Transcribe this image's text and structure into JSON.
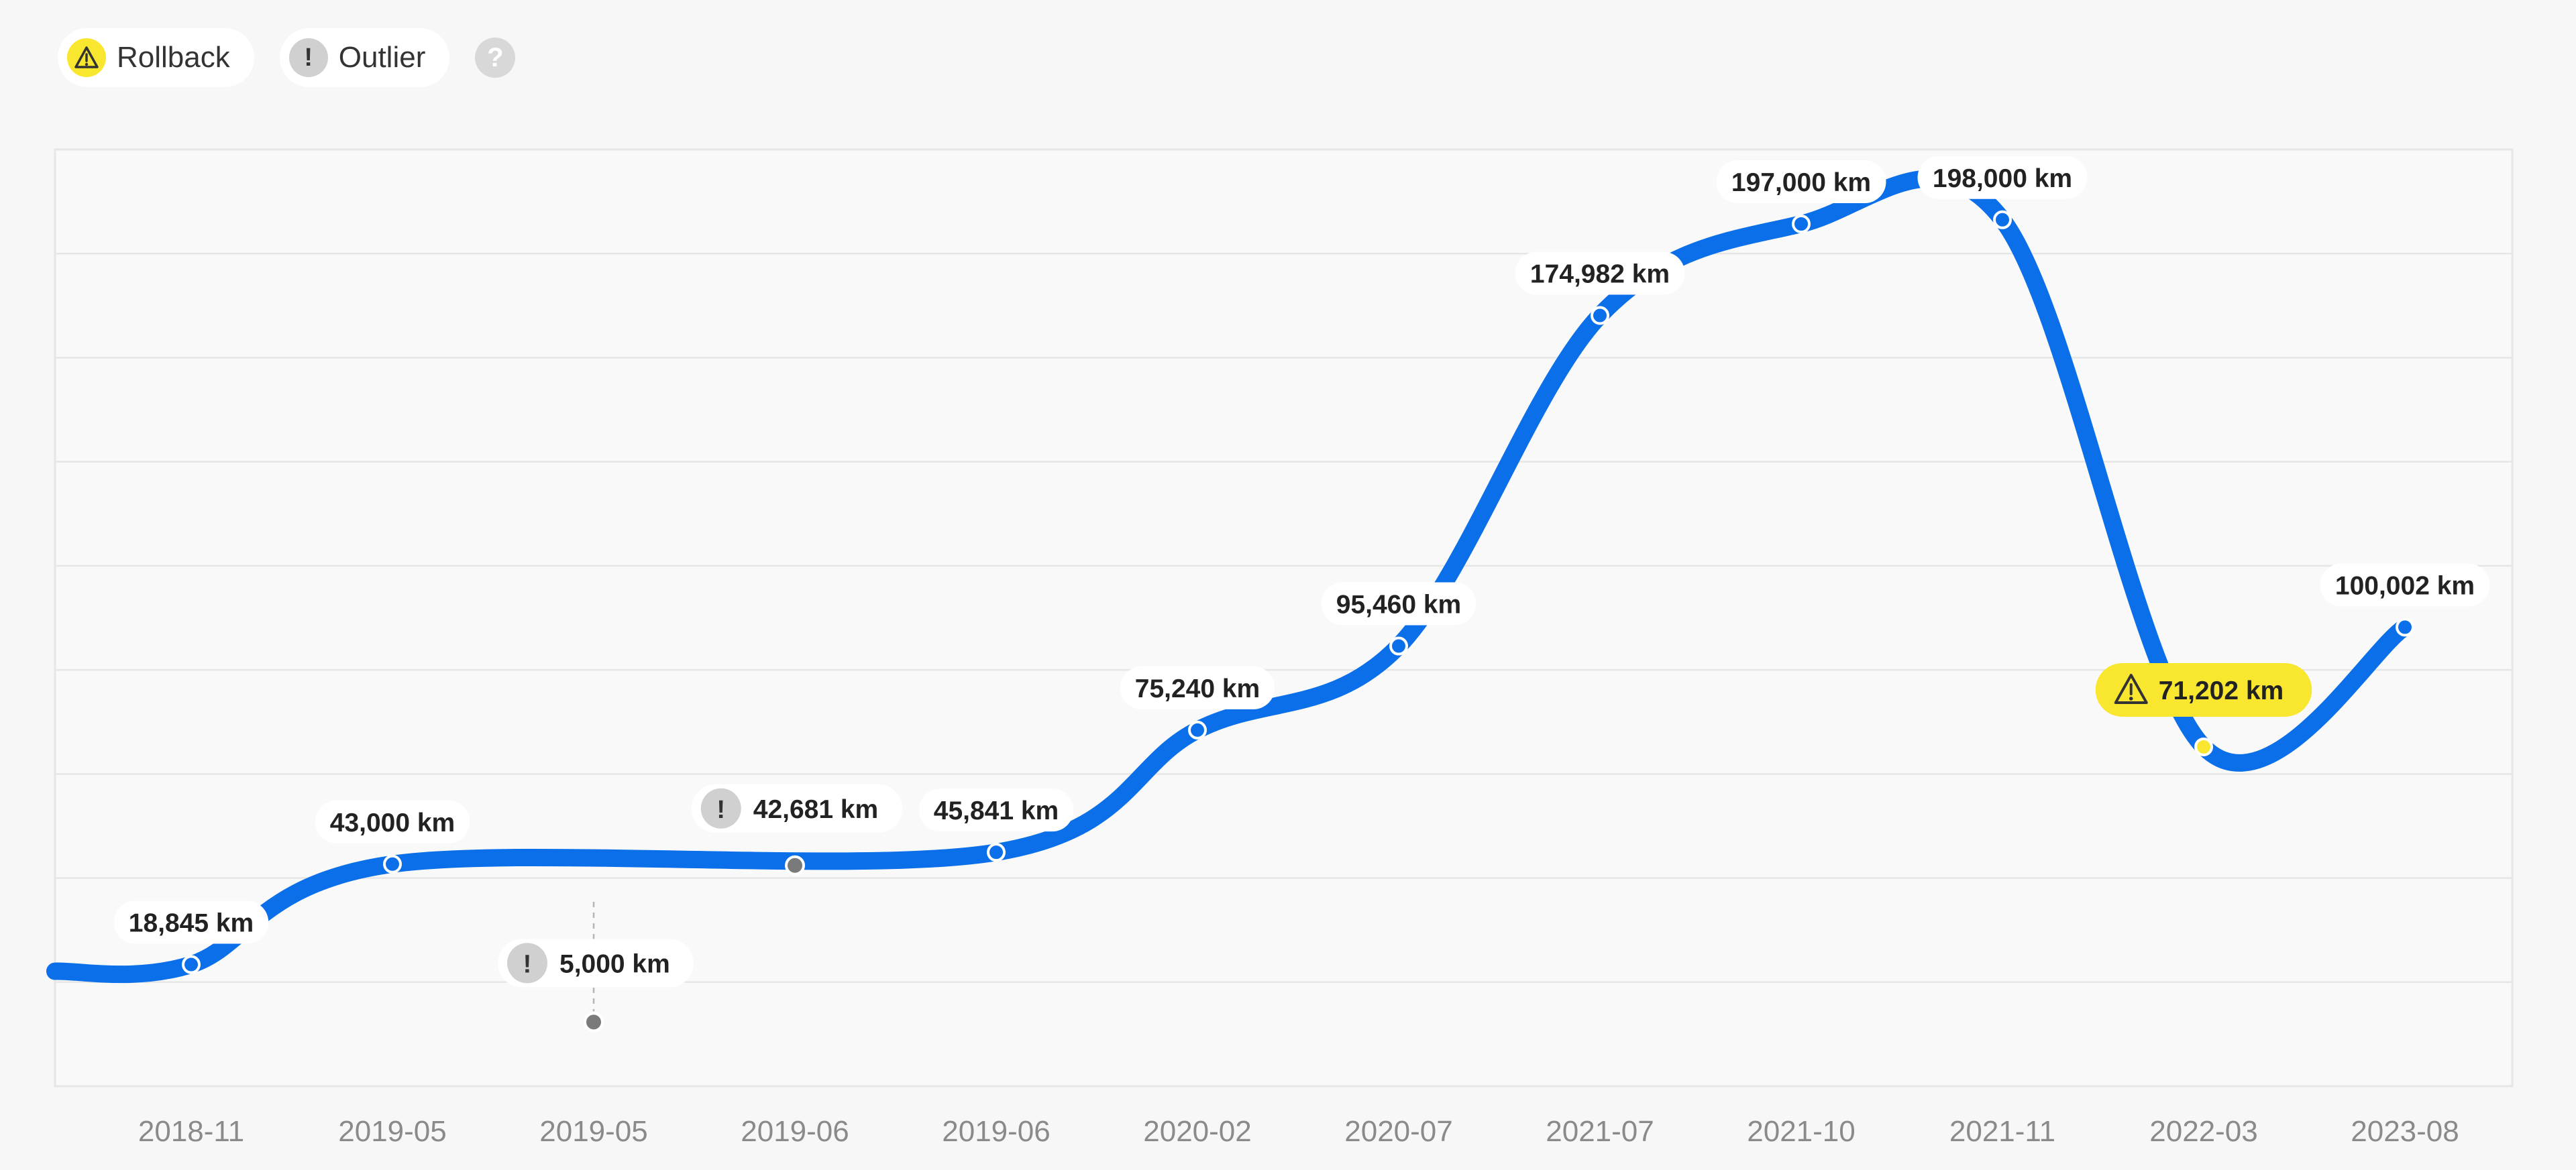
{
  "legend": {
    "rollback_label": "Rollback",
    "outlier_label": "Outlier",
    "rollback_icon": "warning-triangle-icon",
    "outlier_icon": "exclamation-icon",
    "help_icon": "question-icon",
    "help_symbol": "?"
  },
  "colors": {
    "line": "#0a6fe8",
    "rollback": "#f9e62f",
    "outlier_point": "#7a7a7a",
    "outlier_badge": "#d0d0d0",
    "plot_border": "#e6e6e6",
    "grid": "#e6e6e6",
    "tick_text": "#8a8a8a"
  },
  "chart_data": {
    "type": "line",
    "x_labels": [
      "2018-11",
      "2019-05",
      "2019-05",
      "2019-06",
      "2019-06",
      "2020-02",
      "2020-07",
      "2021-07",
      "2021-10",
      "2021-11",
      "2022-03",
      "2023-08"
    ],
    "unit": "km",
    "ylim": [
      0,
      225000
    ],
    "grid": true,
    "series": [
      {
        "values": [
          18845,
          43000,
          5000,
          42681,
          45841,
          75240,
          95460,
          174982,
          197000,
          198000,
          71202,
          100002
        ],
        "labels": [
          "18,845 km",
          "43,000 km",
          "5,000 km",
          "42,681 km",
          "45,841 km",
          "75,240 km",
          "95,460 km",
          "174,982 km",
          "197,000 km",
          "198,000 km",
          "71,202 km",
          "100,002 km"
        ],
        "flags": [
          "",
          "",
          "outlier",
          "outlier",
          "",
          "",
          "",
          "",
          "",
          "",
          "rollback",
          ""
        ]
      }
    ]
  }
}
